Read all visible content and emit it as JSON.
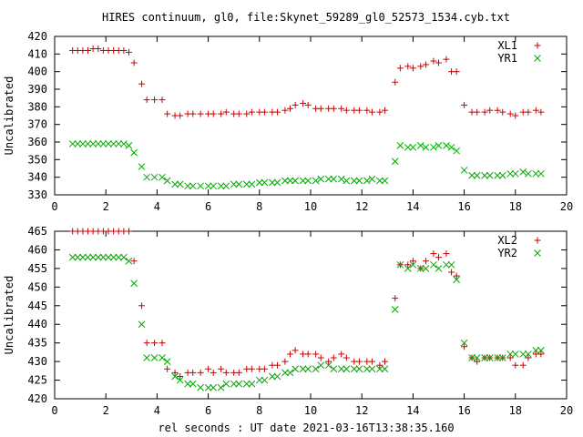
{
  "title": "HIRES continuum, gl0, file:Skynet_59289_gl0_52573_1534.cyb.txt",
  "xlabel": "rel seconds : UT date 2021-03-16T13:38:35.160",
  "chart_data": [
    {
      "type": "scatter",
      "ylabel": "Uncalibrated",
      "xlim": [
        0,
        20
      ],
      "ylim": [
        330,
        420
      ],
      "xticks": [
        0,
        2,
        4,
        6,
        8,
        10,
        12,
        14,
        16,
        18,
        20
      ],
      "yticks": [
        330,
        340,
        350,
        360,
        370,
        380,
        390,
        400,
        410,
        420
      ],
      "legend_position": "top-right",
      "series": [
        {
          "name": "XL1",
          "marker": "plus",
          "color": "#cc0000",
          "x": [
            0.7,
            0.9,
            1.1,
            1.3,
            1.5,
            1.7,
            1.9,
            2.1,
            2.3,
            2.5,
            2.7,
            2.9,
            3.1,
            3.4,
            3.6,
            3.9,
            4.2,
            4.4,
            4.7,
            4.9,
            5.2,
            5.4,
            5.7,
            6.0,
            6.2,
            6.5,
            6.7,
            7.0,
            7.2,
            7.5,
            7.7,
            8.0,
            8.2,
            8.5,
            8.7,
            9.0,
            9.2,
            9.4,
            9.7,
            9.9,
            10.2,
            10.4,
            10.7,
            10.9,
            11.2,
            11.4,
            11.7,
            11.9,
            12.2,
            12.4,
            12.7,
            12.9,
            13.3,
            13.5,
            13.8,
            14.0,
            14.3,
            14.5,
            14.8,
            15.0,
            15.3,
            15.5,
            15.7,
            16.0,
            16.3,
            16.5,
            16.8,
            17.0,
            17.3,
            17.5,
            17.8,
            18.0,
            18.3,
            18.5,
            18.8,
            19.0
          ],
          "y": [
            412,
            412,
            412,
            412,
            413,
            413,
            412,
            412,
            412,
            412,
            412,
            411,
            405,
            393,
            384,
            384,
            384,
            376,
            375,
            375,
            376,
            376,
            376,
            376,
            376,
            376,
            377,
            376,
            376,
            376,
            377,
            377,
            377,
            377,
            377,
            378,
            379,
            381,
            382,
            381,
            379,
            379,
            379,
            379,
            379,
            378,
            378,
            378,
            378,
            377,
            377,
            378,
            394,
            402,
            403,
            402,
            403,
            404,
            406,
            405,
            407,
            400,
            400,
            381,
            377,
            377,
            377,
            378,
            378,
            377,
            376,
            375,
            377,
            377,
            378,
            377
          ]
        },
        {
          "name": "YR1",
          "marker": "cross",
          "color": "#00aa00",
          "x": [
            0.7,
            0.9,
            1.1,
            1.3,
            1.5,
            1.7,
            1.9,
            2.1,
            2.3,
            2.5,
            2.7,
            2.9,
            3.1,
            3.4,
            3.6,
            3.9,
            4.2,
            4.4,
            4.7,
            4.9,
            5.2,
            5.4,
            5.7,
            6.0,
            6.2,
            6.5,
            6.7,
            7.0,
            7.2,
            7.5,
            7.7,
            8.0,
            8.2,
            8.5,
            8.7,
            9.0,
            9.2,
            9.4,
            9.7,
            9.9,
            10.2,
            10.4,
            10.7,
            10.9,
            11.2,
            11.4,
            11.7,
            11.9,
            12.2,
            12.4,
            12.7,
            12.9,
            13.3,
            13.5,
            13.8,
            14.0,
            14.3,
            14.5,
            14.8,
            15.0,
            15.3,
            15.5,
            15.7,
            16.0,
            16.3,
            16.5,
            16.8,
            17.0,
            17.3,
            17.5,
            17.8,
            18.0,
            18.3,
            18.5,
            18.8,
            19.0
          ],
          "y": [
            359,
            359,
            359,
            359,
            359,
            359,
            359,
            359,
            359,
            359,
            359,
            358,
            354,
            346,
            340,
            340,
            340,
            338,
            336,
            336,
            335,
            335,
            335,
            335,
            335,
            335,
            335,
            336,
            336,
            336,
            336,
            337,
            337,
            337,
            337,
            338,
            338,
            338,
            338,
            338,
            338,
            339,
            339,
            339,
            339,
            338,
            338,
            338,
            338,
            339,
            338,
            338,
            349,
            358,
            357,
            357,
            358,
            357,
            357,
            358,
            358,
            357,
            355,
            344,
            341,
            341,
            341,
            341,
            341,
            341,
            342,
            342,
            343,
            342,
            342,
            342
          ]
        }
      ]
    },
    {
      "type": "scatter",
      "ylabel": "Uncalibrated",
      "xlim": [
        0,
        20
      ],
      "ylim": [
        420,
        465
      ],
      "xticks": [
        0,
        2,
        4,
        6,
        8,
        10,
        12,
        14,
        16,
        18,
        20
      ],
      "yticks": [
        420,
        425,
        430,
        435,
        440,
        445,
        450,
        455,
        460,
        465
      ],
      "legend_position": "top-right",
      "series": [
        {
          "name": "XL2",
          "marker": "plus",
          "color": "#cc0000",
          "x": [
            0.7,
            0.9,
            1.1,
            1.3,
            1.5,
            1.7,
            1.9,
            2.1,
            2.3,
            2.5,
            2.7,
            2.9,
            3.1,
            3.4,
            3.6,
            3.9,
            4.2,
            4.4,
            4.7,
            4.9,
            5.2,
            5.4,
            5.7,
            6.0,
            6.2,
            6.5,
            6.7,
            7.0,
            7.2,
            7.5,
            7.7,
            8.0,
            8.2,
            8.5,
            8.7,
            9.0,
            9.2,
            9.4,
            9.7,
            9.9,
            10.2,
            10.4,
            10.7,
            10.9,
            11.2,
            11.4,
            11.7,
            11.9,
            12.2,
            12.4,
            12.7,
            12.9,
            13.3,
            13.5,
            13.8,
            14.0,
            14.3,
            14.5,
            14.8,
            15.0,
            15.3,
            15.5,
            15.7,
            16.0,
            16.3,
            16.5,
            16.8,
            17.0,
            17.3,
            17.5,
            17.8,
            18.0,
            18.3,
            18.5,
            18.8,
            19.0
          ],
          "y": [
            465,
            465,
            465,
            465,
            465,
            465,
            465,
            465,
            465,
            465,
            465,
            465,
            457,
            445,
            435,
            435,
            435,
            428,
            427,
            426,
            427,
            427,
            427,
            428,
            427,
            428,
            427,
            427,
            427,
            428,
            428,
            428,
            428,
            429,
            429,
            430,
            432,
            433,
            432,
            432,
            432,
            431,
            430,
            431,
            432,
            431,
            430,
            430,
            430,
            430,
            429,
            430,
            447,
            456,
            456,
            457,
            455,
            457,
            459,
            458,
            459,
            454,
            453,
            434,
            431,
            430,
            431,
            431,
            431,
            431,
            431,
            429,
            429,
            431,
            432,
            432
          ]
        },
        {
          "name": "YR2",
          "marker": "cross",
          "color": "#00aa00",
          "x": [
            0.7,
            0.9,
            1.1,
            1.3,
            1.5,
            1.7,
            1.9,
            2.1,
            2.3,
            2.5,
            2.7,
            2.9,
            3.1,
            3.4,
            3.6,
            3.9,
            4.2,
            4.4,
            4.7,
            4.9,
            5.2,
            5.4,
            5.7,
            6.0,
            6.2,
            6.5,
            6.7,
            7.0,
            7.2,
            7.5,
            7.7,
            8.0,
            8.2,
            8.5,
            8.7,
            9.0,
            9.2,
            9.4,
            9.7,
            9.9,
            10.2,
            10.4,
            10.7,
            10.9,
            11.2,
            11.4,
            11.7,
            11.9,
            12.2,
            12.4,
            12.7,
            12.9,
            13.3,
            13.5,
            13.8,
            14.0,
            14.3,
            14.5,
            14.8,
            15.0,
            15.3,
            15.5,
            15.7,
            16.0,
            16.3,
            16.5,
            16.8,
            17.0,
            17.3,
            17.5,
            17.8,
            18.0,
            18.3,
            18.5,
            18.8,
            19.0
          ],
          "y": [
            458,
            458,
            458,
            458,
            458,
            458,
            458,
            458,
            458,
            458,
            458,
            457,
            451,
            440,
            431,
            431,
            431,
            430,
            426,
            425,
            424,
            424,
            423,
            423,
            423,
            423,
            424,
            424,
            424,
            424,
            424,
            425,
            425,
            426,
            426,
            427,
            427,
            428,
            428,
            428,
            428,
            429,
            429,
            428,
            428,
            428,
            428,
            428,
            428,
            428,
            428,
            428,
            444,
            456,
            455,
            456,
            455,
            455,
            456,
            455,
            456,
            456,
            452,
            435,
            431,
            431,
            431,
            431,
            431,
            431,
            432,
            432,
            432,
            432,
            433,
            433
          ]
        }
      ]
    }
  ]
}
